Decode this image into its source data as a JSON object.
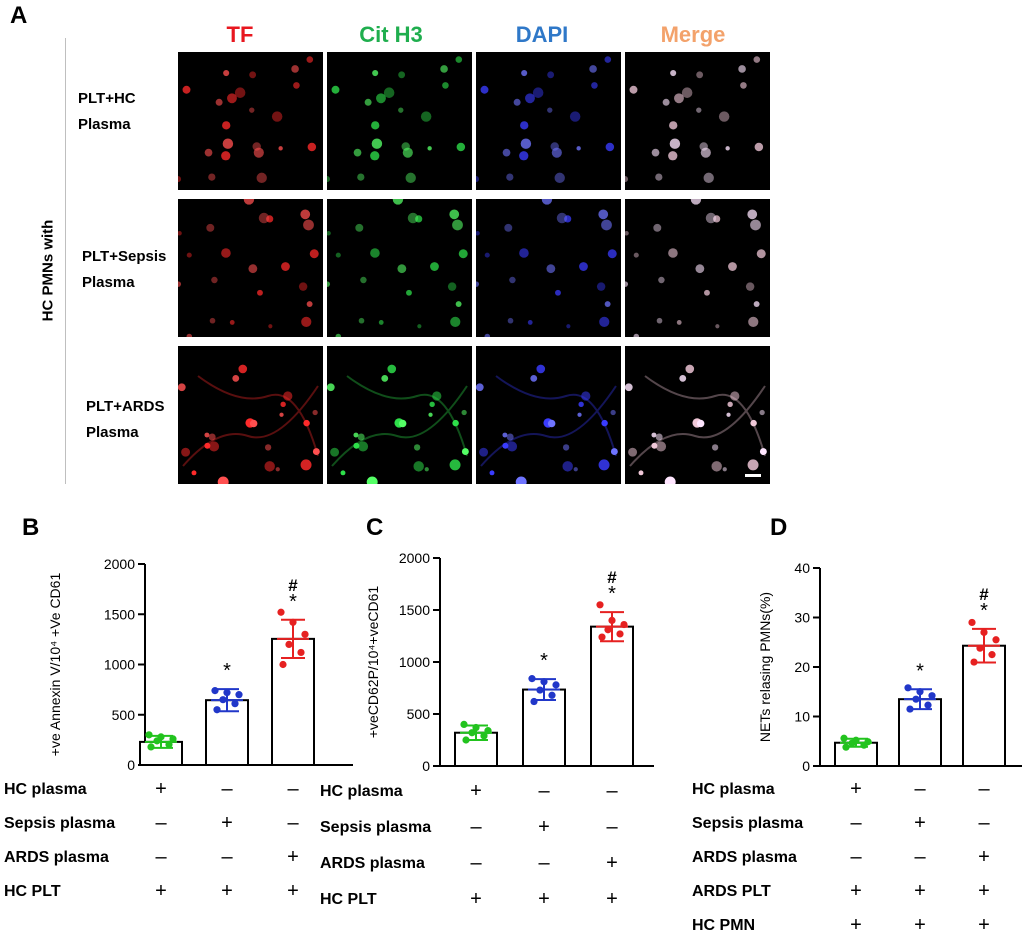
{
  "panelA": {
    "letter": "A",
    "channels": [
      {
        "label": "TF",
        "color": "#e8171f"
      },
      {
        "label": "Cit H3",
        "color": "#1fae4e"
      },
      {
        "label": "DAPI",
        "color": "#2f78c8"
      },
      {
        "label": "Merge",
        "color": "#f3a26b"
      }
    ],
    "side_label": "HC PMNs with",
    "rows": [
      {
        "label_line1": "PLT+HC",
        "label_line2": "Plasma"
      },
      {
        "label_line1": "PLT+Sepsis",
        "label_line2": "Plasma"
      },
      {
        "label_line1": "PLT+ARDS",
        "label_line2": "Plasma"
      }
    ]
  },
  "chart_data": [
    {
      "letter": "B",
      "type": "bar",
      "ylabel": "+ve Annexin V/10⁴ +Ve CD61",
      "ylim": [
        0,
        2000
      ],
      "yticks": [
        0,
        500,
        1000,
        1500,
        2000
      ],
      "bar_values": [
        230,
        645,
        1255
      ],
      "errors": [
        60,
        110,
        190
      ],
      "point_colors": [
        "#22c31e",
        "#2137c9",
        "#e62121"
      ],
      "points": [
        [
          180,
          205,
          240,
          260,
          280,
          300
        ],
        [
          550,
          610,
          650,
          700,
          720,
          740
        ],
        [
          1000,
          1120,
          1200,
          1300,
          1420,
          1520
        ]
      ],
      "annotations": [
        [],
        [
          "*"
        ],
        [
          "*",
          "#"
        ]
      ],
      "conditions": [
        {
          "label": "HC plasma",
          "values": [
            "+",
            "–",
            "–"
          ]
        },
        {
          "label": "Sepsis plasma",
          "values": [
            "–",
            "+",
            "–"
          ]
        },
        {
          "label": "ARDS plasma",
          "values": [
            "–",
            "–",
            "+"
          ]
        },
        {
          "label": "HC PLT",
          "values": [
            "+",
            "+",
            "+"
          ]
        }
      ]
    },
    {
      "letter": "C",
      "type": "bar",
      "ylabel": "+veCD62P/10⁴+veCD61",
      "ylim": [
        0,
        2000
      ],
      "yticks": [
        0,
        500,
        1000,
        1500,
        2000
      ],
      "bar_values": [
        320,
        735,
        1340
      ],
      "errors": [
        70,
        100,
        140
      ],
      "point_colors": [
        "#22c31e",
        "#2137c9",
        "#e62121"
      ],
      "points": [
        [
          250,
          290,
          320,
          340,
          370,
          400
        ],
        [
          620,
          680,
          730,
          780,
          810,
          840
        ],
        [
          1240,
          1270,
          1310,
          1360,
          1400,
          1550
        ]
      ],
      "annotations": [
        [],
        [
          "*"
        ],
        [
          "*",
          "#"
        ]
      ],
      "conditions": [
        {
          "label": "HC plasma",
          "values": [
            "+",
            "–",
            "–"
          ]
        },
        {
          "label": "Sepsis plasma",
          "values": [
            "–",
            "+",
            "–"
          ]
        },
        {
          "label": "ARDS plasma",
          "values": [
            "–",
            "–",
            "+"
          ]
        },
        {
          "label": "HC PLT",
          "values": [
            "+",
            "+",
            "+"
          ]
        }
      ]
    },
    {
      "letter": "D",
      "type": "bar",
      "ylabel": "NETs relasing PMNs(%)",
      "ylim": [
        0,
        40
      ],
      "yticks": [
        0,
        10,
        20,
        30,
        40
      ],
      "bar_values": [
        4.7,
        13.5,
        24.3
      ],
      "errors": [
        0.8,
        2.0,
        3.4
      ],
      "point_colors": [
        "#22c31e",
        "#2137c9",
        "#e62121"
      ],
      "points": [
        [
          3.8,
          4.2,
          4.6,
          4.9,
          5.2,
          5.6
        ],
        [
          11.5,
          12.3,
          13.5,
          14.2,
          15.0,
          15.8
        ],
        [
          21.0,
          22.5,
          23.8,
          25.5,
          27.0,
          29.0
        ]
      ],
      "annotations": [
        [],
        [
          "*"
        ],
        [
          "*",
          "#"
        ]
      ],
      "conditions": [
        {
          "label": "HC plasma",
          "values": [
            "+",
            "–",
            "–"
          ]
        },
        {
          "label": "Sepsis plasma",
          "values": [
            "–",
            "+",
            "–"
          ]
        },
        {
          "label": "ARDS plasma",
          "values": [
            "–",
            "–",
            "+"
          ]
        },
        {
          "label": "ARDS PLT",
          "values": [
            "+",
            "+",
            "+"
          ]
        },
        {
          "label": "HC PMN",
          "values": [
            "+",
            "+",
            "+"
          ]
        }
      ]
    }
  ]
}
